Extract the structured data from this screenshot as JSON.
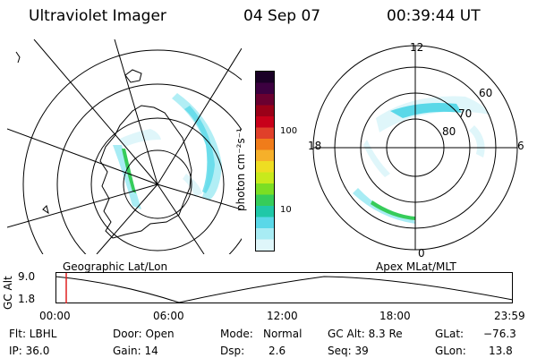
{
  "header": {
    "instrument": "Ultraviolet Imager",
    "date": "04 Sep 07",
    "time": "00:39:44 UT"
  },
  "colorbar": {
    "unit_label": "photon cm⁻²s⁻¹",
    "ticks": [
      "100",
      "10"
    ],
    "colors": [
      "#1a0026",
      "#3c0040",
      "#6a0030",
      "#9a0018",
      "#c8001a",
      "#e0402a",
      "#f07c1a",
      "#f6b02a",
      "#eedd22",
      "#c8ea1c",
      "#7cde24",
      "#36cc5a",
      "#20c8a8",
      "#5ad8e8",
      "#a8ecf4",
      "#dff6fa"
    ]
  },
  "left_panel": {
    "projection_label": "Geographic Lat/Lon"
  },
  "right_panel": {
    "projection_label": "Apex MLat/MLT",
    "mlt_labels": {
      "top": "12",
      "left": "18",
      "right": "6",
      "bottom": "0"
    },
    "lat_labels": [
      "60",
      "70",
      "80"
    ]
  },
  "altitude_plot": {
    "ylabel": "GC Alt",
    "yticks": [
      "9.0",
      "1.8"
    ],
    "xticks": [
      "00:00",
      "06:00",
      "12:00",
      "18:00",
      "23:59"
    ],
    "marker_color": "#e02020"
  },
  "info": {
    "row1": {
      "flt": "Flt: LBHL",
      "door": "Door: Open",
      "mode_label": "Mode:",
      "mode_value": "Normal",
      "gcalt": "GC Alt: 8.3 Re",
      "glat_label": "GLat:",
      "glat_value": "−76.3"
    },
    "row2": {
      "ip": "IP: 36.0",
      "gain": "Gain: 14",
      "dsp_label": "Dsp:",
      "dsp_value": "2.6",
      "seq": "Seq: 39",
      "glon_label": "GLon:",
      "glon_value": "13.8"
    }
  }
}
